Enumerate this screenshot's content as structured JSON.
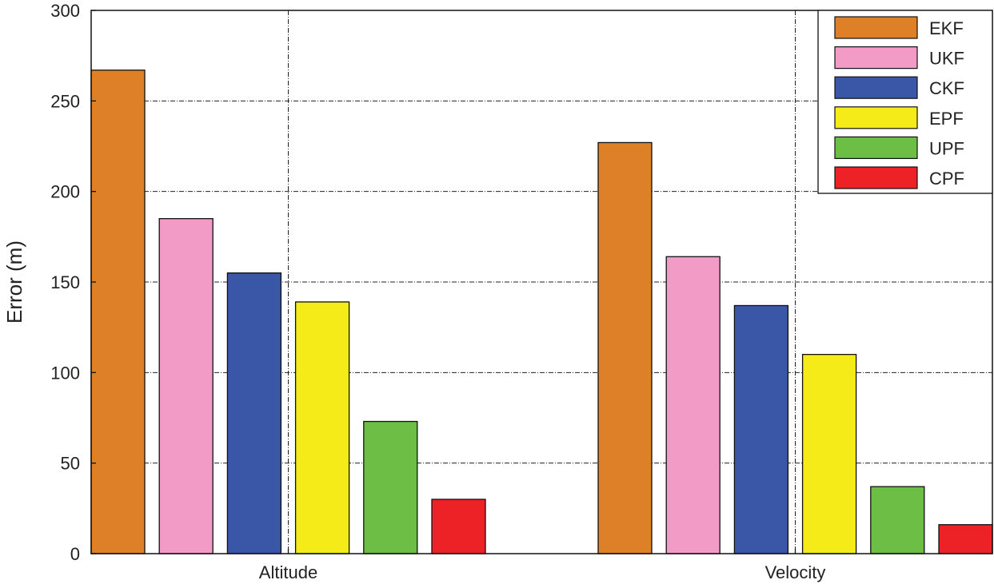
{
  "chart_data": {
    "type": "bar",
    "title": "",
    "xlabel": "",
    "ylabel": "Error (m)",
    "ylim": [
      0,
      300
    ],
    "yticks": [
      0,
      50,
      100,
      150,
      200,
      250,
      300
    ],
    "categories": [
      "Altitude",
      "Velocity"
    ],
    "series": [
      {
        "name": "EKF",
        "color": "#DE8028",
        "values": [
          267,
          227
        ]
      },
      {
        "name": "UKF",
        "color": "#F39BC7",
        "values": [
          185,
          164
        ]
      },
      {
        "name": "CKF",
        "color": "#3A56A7",
        "values": [
          155,
          137
        ]
      },
      {
        "name": "EPF",
        "color": "#F5EB19",
        "values": [
          139,
          110
        ]
      },
      {
        "name": "UPF",
        "color": "#6CBE45",
        "values": [
          73,
          37
        ]
      },
      {
        "name": "CPF",
        "color": "#EC2227",
        "values": [
          30,
          16
        ]
      }
    ],
    "grid": true,
    "legend_position": "top-right"
  }
}
